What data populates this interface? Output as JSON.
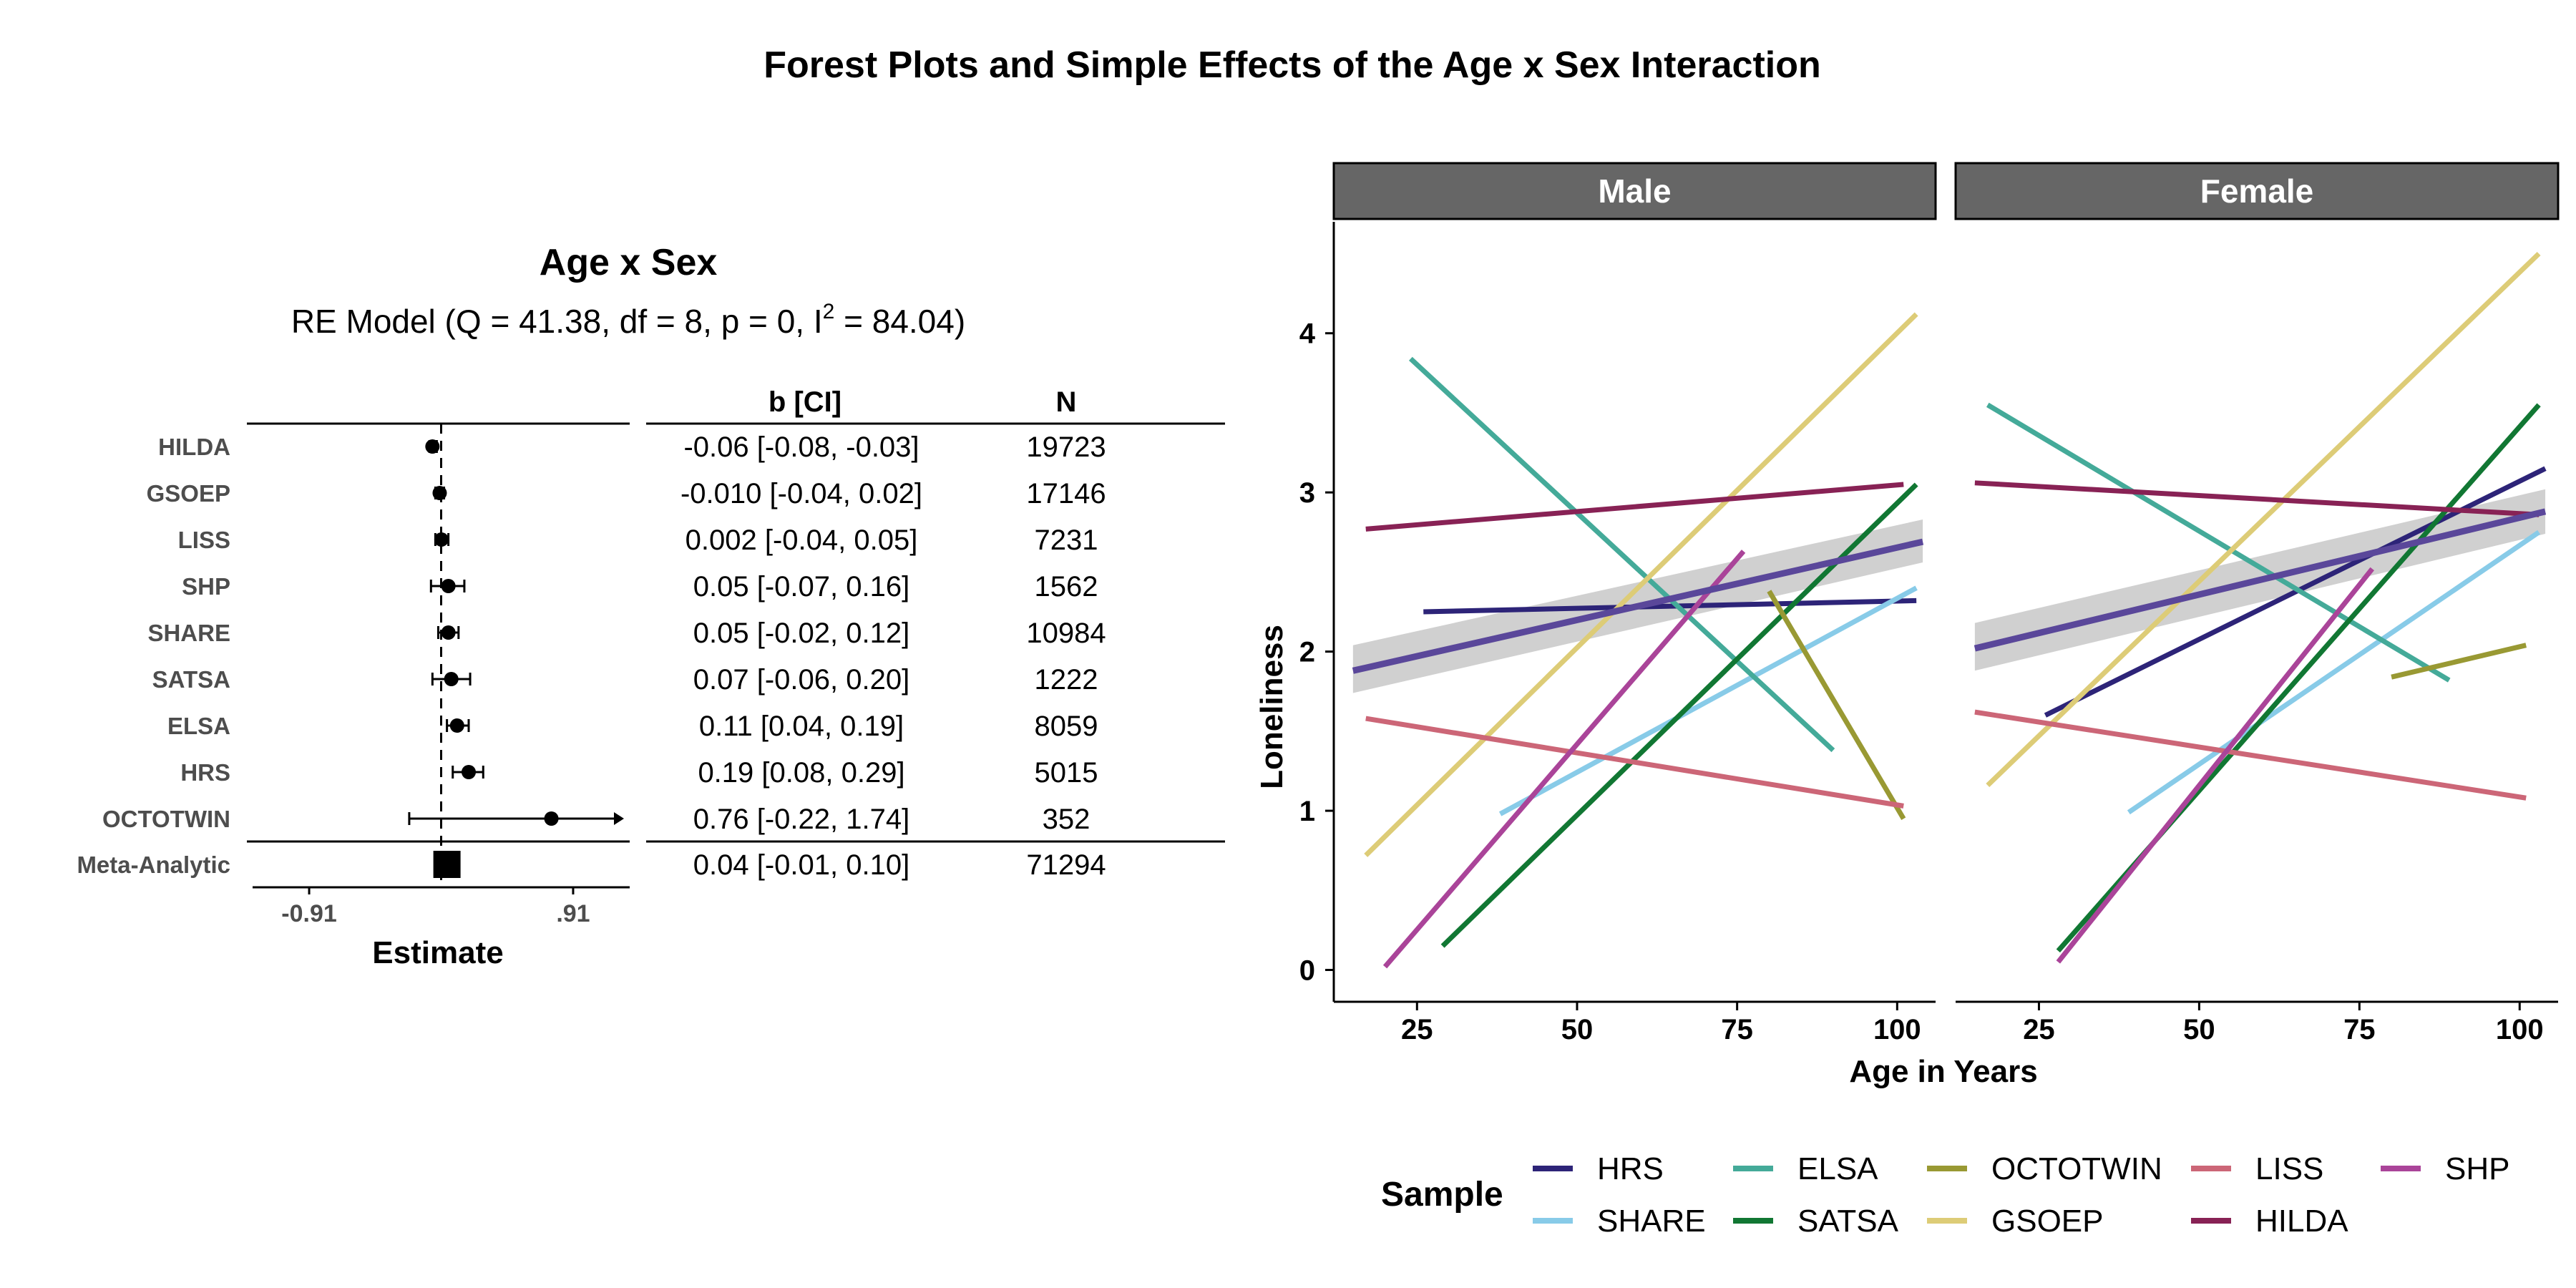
{
  "title": "Forest Plots and Simple Effects of the Age x Sex Interaction",
  "chart_data": [
    {
      "type": "forest",
      "title": "Age x Sex",
      "model": {
        "prefix": "RE Model (Q = 41.38, df = 8, p = 0, I",
        "sup": "2",
        "suffix": " = 84.04)"
      },
      "xlabel": "Estimate",
      "x_ticks": [
        {
          "value": -0.91,
          "label": "-0.91"
        },
        {
          "value": 0.91,
          "label": ".91"
        }
      ],
      "xlim": [
        -1.3,
        1.3
      ],
      "reference_line": 0,
      "columns": {
        "ci": "b [CI]",
        "n": "N"
      },
      "studies": [
        {
          "name": "HILDA",
          "estimate": -0.06,
          "lower": -0.08,
          "upper": -0.03,
          "ci_text": "-0.06 [-0.08, -0.03]",
          "n": "19723"
        },
        {
          "name": "GSOEP",
          "estimate": -0.01,
          "lower": -0.04,
          "upper": 0.02,
          "ci_text": "-0.010 [-0.04, 0.02]",
          "n": "17146"
        },
        {
          "name": "LISS",
          "estimate": 0.002,
          "lower": -0.04,
          "upper": 0.05,
          "ci_text": "0.002 [-0.04, 0.05]",
          "n": "7231"
        },
        {
          "name": "SHP",
          "estimate": 0.05,
          "lower": -0.07,
          "upper": 0.16,
          "ci_text": "0.05 [-0.07, 0.16]",
          "n": "1562"
        },
        {
          "name": "SHARE",
          "estimate": 0.05,
          "lower": -0.02,
          "upper": 0.12,
          "ci_text": "0.05 [-0.02, 0.12]",
          "n": "10984"
        },
        {
          "name": "SATSA",
          "estimate": 0.07,
          "lower": -0.06,
          "upper": 0.2,
          "ci_text": "0.07 [-0.06, 0.20]",
          "n": "1222"
        },
        {
          "name": "ELSA",
          "estimate": 0.11,
          "lower": 0.04,
          "upper": 0.19,
          "ci_text": "0.11 [0.04, 0.19]",
          "n": "8059"
        },
        {
          "name": "HRS",
          "estimate": 0.19,
          "lower": 0.08,
          "upper": 0.29,
          "ci_text": "0.19 [0.08, 0.29]",
          "n": "5015"
        },
        {
          "name": "OCTOTWIN",
          "estimate": 0.76,
          "lower": -0.22,
          "upper": 1.74,
          "ci_text": "0.76 [-0.22, 1.74]",
          "n": "352"
        }
      ],
      "summary": {
        "name": "Meta-Analytic",
        "estimate": 0.04,
        "lower": -0.01,
        "upper": 0.1,
        "ci_text": "0.04 [-0.01, 0.10]",
        "n": "71294"
      }
    },
    {
      "type": "line",
      "xlabel": "Age in Years",
      "ylabel": "Loneliness",
      "xlim": [
        12,
        106
      ],
      "ylim": [
        -0.2,
        4.7
      ],
      "x_ticks": [
        25,
        50,
        75,
        100
      ],
      "y_ticks": [
        0,
        1,
        2,
        3,
        4
      ],
      "colors": {
        "HRS": "#2d2478",
        "SHARE": "#88cbe8",
        "ELSA": "#44aa99",
        "SATSA": "#117733",
        "OCTOTWIN": "#999933",
        "GSOEP": "#ddcc77",
        "LISS": "#cc6677",
        "HILDA": "#882255",
        "SHP": "#aa4499",
        "meta": "#5a479a",
        "band": "#c8c8c8"
      },
      "legend": {
        "title": "Sample",
        "position": "bottom",
        "items": [
          "HRS",
          "SHARE",
          "ELSA",
          "SATSA",
          "OCTOTWIN",
          "GSOEP",
          "LISS",
          "HILDA",
          "SHP"
        ]
      },
      "panels": [
        {
          "name": "Male",
          "series": [
            {
              "name": "HRS",
              "x": [
                26,
                103
              ],
              "y": [
                2.25,
                2.32
              ]
            },
            {
              "name": "SHARE",
              "x": [
                38,
                103
              ],
              "y": [
                0.98,
                2.4
              ]
            },
            {
              "name": "ELSA",
              "x": [
                24,
                90
              ],
              "y": [
                3.84,
                1.38
              ]
            },
            {
              "name": "SATSA",
              "x": [
                29,
                103
              ],
              "y": [
                0.15,
                3.05
              ]
            },
            {
              "name": "OCTOTWIN",
              "x": [
                80,
                101
              ],
              "y": [
                2.38,
                0.95
              ]
            },
            {
              "name": "GSOEP",
              "x": [
                17,
                103
              ],
              "y": [
                0.72,
                4.12
              ]
            },
            {
              "name": "LISS",
              "x": [
                17,
                101
              ],
              "y": [
                1.58,
                1.03
              ]
            },
            {
              "name": "HILDA",
              "x": [
                17,
                101
              ],
              "y": [
                2.77,
                3.05
              ]
            },
            {
              "name": "SHP",
              "x": [
                20,
                76
              ],
              "y": [
                0.02,
                2.63
              ]
            }
          ],
          "meta": {
            "x": [
              15,
              104
            ],
            "y": [
              1.88,
              2.69
            ],
            "lower": [
              1.74,
              2.56
            ],
            "upper": [
              2.04,
              2.83
            ]
          }
        },
        {
          "name": "Female",
          "series": [
            {
              "name": "HRS",
              "x": [
                26,
                104
              ],
              "y": [
                1.6,
                3.15
              ]
            },
            {
              "name": "SHARE",
              "x": [
                39,
                103
              ],
              "y": [
                0.99,
                2.75
              ]
            },
            {
              "name": "ELSA",
              "x": [
                17,
                89
              ],
              "y": [
                3.55,
                1.82
              ]
            },
            {
              "name": "SATSA",
              "x": [
                28,
                103
              ],
              "y": [
                0.12,
                3.55
              ]
            },
            {
              "name": "OCTOTWIN",
              "x": [
                80,
                101
              ],
              "y": [
                1.84,
                2.04
              ]
            },
            {
              "name": "GSOEP",
              "x": [
                17,
                103
              ],
              "y": [
                1.16,
                4.5
              ]
            },
            {
              "name": "LISS",
              "x": [
                15,
                101
              ],
              "y": [
                1.62,
                1.08
              ]
            },
            {
              "name": "HILDA",
              "x": [
                15,
                103
              ],
              "y": [
                3.06,
                2.86
              ]
            },
            {
              "name": "SHP",
              "x": [
                28,
                77
              ],
              "y": [
                0.05,
                2.52
              ]
            }
          ],
          "meta": {
            "x": [
              15,
              104
            ],
            "y": [
              2.02,
              2.88
            ],
            "lower": [
              1.88,
              2.74
            ],
            "upper": [
              2.18,
              3.02
            ]
          }
        }
      ]
    }
  ]
}
